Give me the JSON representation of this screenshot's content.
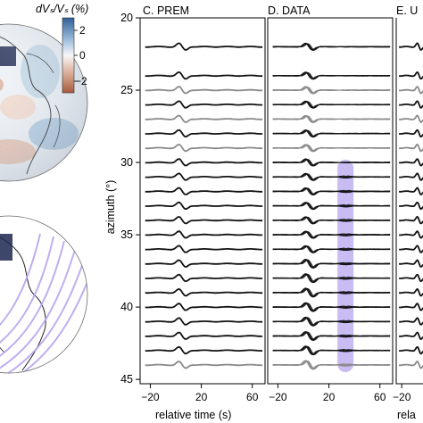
{
  "colorbar": {
    "label": "dVₛ/Vₛ (%)",
    "ticks": [
      "2",
      "0",
      "−2"
    ],
    "colors": [
      "#3a6ea5",
      "#f7f7f7",
      "#b46a4a"
    ]
  },
  "panels": [
    {
      "title": "C. PREM"
    },
    {
      "title": "D. DATA"
    },
    {
      "title": "E. U"
    }
  ],
  "chart_data": {
    "type": "line",
    "ylabel": "azimuth (°)",
    "xlabel": "relative time (s)",
    "xlabel_partial": "rela",
    "x_ticks": [
      "−20",
      "20",
      "60"
    ],
    "x_tick_values": [
      -20,
      20,
      60
    ],
    "xlim": [
      -28,
      70
    ],
    "y_ticks": [
      "20",
      "25",
      "30",
      "35",
      "40",
      "45"
    ],
    "y_tick_values": [
      20,
      25,
      30,
      35,
      40,
      45
    ],
    "ylim": [
      20,
      45.3
    ],
    "trace_azimuths": [
      22,
      24,
      25,
      26,
      27,
      28,
      29,
      30,
      31,
      32,
      33,
      34,
      35,
      36,
      37,
      38,
      39,
      40,
      41,
      42,
      43,
      44
    ],
    "trace_colors": [
      "black",
      "black",
      "gray",
      "black",
      "gray",
      "black",
      "gray",
      "black",
      "black",
      "black",
      "black",
      "black",
      "black",
      "black",
      "black",
      "black",
      "black",
      "black",
      "black",
      "black",
      "black",
      "gray"
    ],
    "highlight": {
      "panel": "D. DATA",
      "t_center": 33,
      "azimuth_range": [
        29.8,
        44.5
      ],
      "color": "#b7a6ef"
    }
  }
}
